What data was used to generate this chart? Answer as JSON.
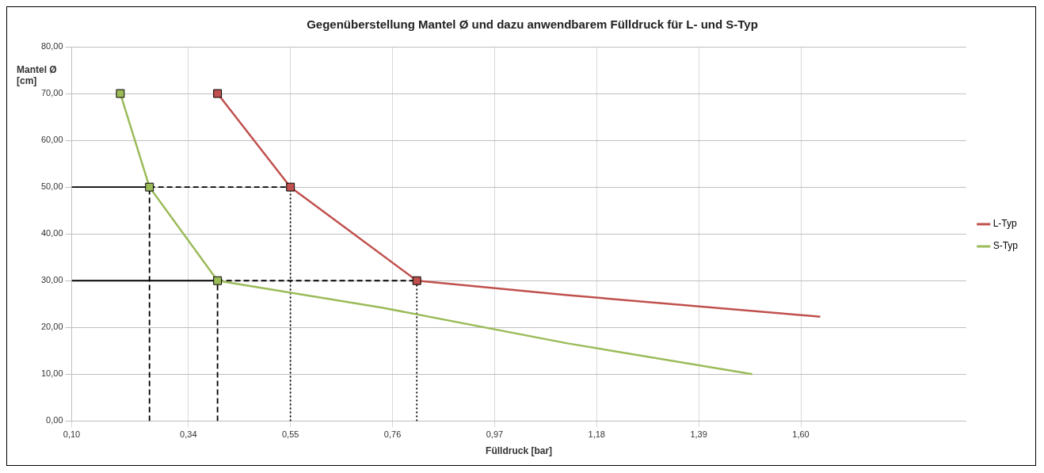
{
  "chart_data": {
    "type": "line",
    "title": "Gegenüberstellung Mantel Ø und dazu anwendbarem Fülldruck für L- und S-Typ",
    "xlabel": "Fülldruck [bar]",
    "ylabel": "Mantel Ø [cm]",
    "xlim": [
      0.1,
      1.94
    ],
    "xticks": [
      {
        "value": 0.1,
        "label": "0,10"
      },
      {
        "value": 0.34,
        "label": "0,34"
      },
      {
        "value": 0.55,
        "label": "0,55"
      },
      {
        "value": 0.76,
        "label": "0,76"
      },
      {
        "value": 0.97,
        "label": "0,97"
      },
      {
        "value": 1.18,
        "label": "1,18"
      },
      {
        "value": 1.39,
        "label": "1,39"
      },
      {
        "value": 1.6,
        "label": "1,60"
      }
    ],
    "ylim": [
      0,
      80
    ],
    "yticks": [
      {
        "value": 0,
        "label": "0,00"
      },
      {
        "value": 10,
        "label": "10,00"
      },
      {
        "value": 20,
        "label": "20,00"
      },
      {
        "value": 30,
        "label": "30,00"
      },
      {
        "value": 40,
        "label": "40,00"
      },
      {
        "value": 50,
        "label": "50,00"
      },
      {
        "value": 60,
        "label": "60,00"
      },
      {
        "value": 70,
        "label": "70,00"
      },
      {
        "value": 80,
        "label": "80,00"
      }
    ],
    "grid": true,
    "legend": "right",
    "series": [
      {
        "type": "line",
        "name": "L-Typ",
        "color": "#c0504d",
        "marker": "none",
        "line_style": "solid",
        "x": [
          0.4,
          0.55,
          0.81,
          1.12,
          1.64
        ],
        "values": [
          70,
          50,
          30,
          26.9,
          22.3
        ]
      },
      {
        "type": "line",
        "name": "S-Typ",
        "color": "#9bbb59",
        "marker": "none",
        "line_style": "solid",
        "x": [
          0.2,
          0.26,
          0.4,
          0.74,
          1.12,
          1.5
        ],
        "values": [
          70,
          50,
          30,
          24.2,
          16.6,
          10
        ]
      },
      {
        "type": "line",
        "color": "#000000",
        "marker": "none",
        "line_style": "solid",
        "x": [
          0.1,
          0.26
        ],
        "values": [
          50,
          50
        ]
      },
      {
        "type": "line",
        "color": "#000000",
        "marker": "none",
        "line_style": "dashed",
        "x": [
          0.26,
          0.55
        ],
        "values": [
          50,
          50
        ]
      },
      {
        "type": "line",
        "color": "#000000",
        "marker": "none",
        "line_style": "solid",
        "x": [
          0.1,
          0.4
        ],
        "values": [
          30,
          30
        ]
      },
      {
        "type": "line",
        "color": "#000000",
        "marker": "none",
        "line_style": "dashed",
        "x": [
          0.4,
          0.81
        ],
        "values": [
          30,
          30
        ]
      },
      {
        "type": "line",
        "color": "#000000",
        "marker": "none",
        "line_style": "dashed",
        "x": [
          0.26,
          0.26
        ],
        "values": [
          0,
          50
        ]
      },
      {
        "type": "line",
        "color": "#000000",
        "marker": "none",
        "line_style": "dashed",
        "x": [
          0.4,
          0.4
        ],
        "values": [
          0,
          30
        ]
      },
      {
        "type": "line",
        "color": "#000000",
        "marker": "none",
        "line_style": "dotted",
        "x": [
          0.55,
          0.55
        ],
        "values": [
          0,
          50
        ]
      },
      {
        "type": "line",
        "color": "#000000",
        "marker": "none",
        "line_style": "dotted",
        "x": [
          0.81,
          0.81
        ],
        "values": [
          0,
          30
        ]
      },
      {
        "type": "scatter",
        "color": "#c0504d",
        "marker": "square",
        "x": [
          0.4,
          0.55,
          0.81
        ],
        "values": [
          70,
          50,
          30
        ]
      },
      {
        "type": "scatter",
        "color": "#9bbb59",
        "marker": "square",
        "x": [
          0.2,
          0.26,
          0.4
        ],
        "values": [
          70,
          50,
          30
        ]
      }
    ]
  }
}
